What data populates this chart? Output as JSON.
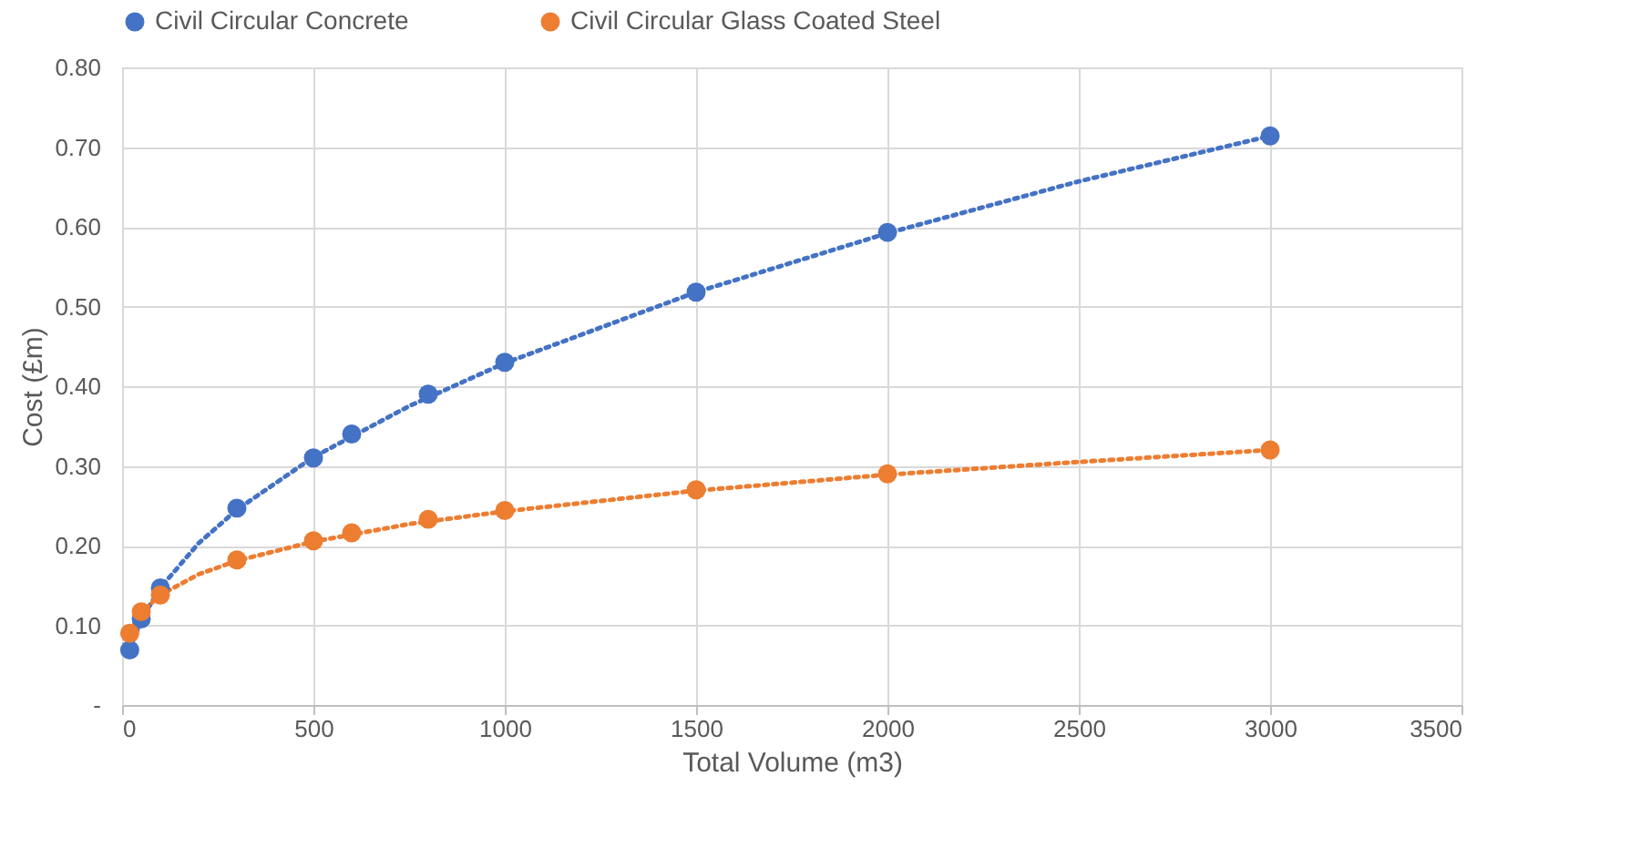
{
  "chart_data": {
    "type": "scatter",
    "xlabel": "Total Volume (m3)",
    "ylabel": "Cost (£m)",
    "xlim": [
      0,
      3500
    ],
    "xticks": [
      0,
      500,
      1000,
      1500,
      2000,
      2500,
      3000,
      3500
    ],
    "ylim": [
      0,
      0.8
    ],
    "yticks": [
      {
        "value": 0,
        "label": "-"
      },
      {
        "value": 0.1,
        "label": "0.10"
      },
      {
        "value": 0.2,
        "label": "0.20"
      },
      {
        "value": 0.3,
        "label": "0.30"
      },
      {
        "value": 0.4,
        "label": "0.40"
      },
      {
        "value": 0.5,
        "label": "0.50"
      },
      {
        "value": 0.6,
        "label": "0.60"
      },
      {
        "value": 0.7,
        "label": "0.70"
      },
      {
        "value": 0.8,
        "label": "0.80"
      }
    ],
    "grid": true,
    "legend": "top",
    "series": [
      {
        "type": "line",
        "color": "#4472c4",
        "line_style": "dotted",
        "marker": "none",
        "x": [
          20,
          50,
          100,
          200,
          300,
          500,
          750,
          1000,
          1500,
          2000,
          2500,
          3000
        ],
        "values": [
          0.07,
          0.107,
          0.147,
          0.203,
          0.245,
          0.311,
          0.375,
          0.429,
          0.518,
          0.592,
          0.657,
          0.714
        ]
      },
      {
        "type": "line",
        "color": "#ed7d31",
        "line_style": "dotted",
        "marker": "none",
        "x": [
          20,
          50,
          100,
          200,
          300,
          500,
          750,
          1000,
          1500,
          2000,
          2500,
          3000
        ],
        "values": [
          0.093,
          0.116,
          0.138,
          0.164,
          0.181,
          0.205,
          0.227,
          0.243,
          0.269,
          0.289,
          0.305,
          0.32
        ]
      },
      {
        "name": "Civil Circular Concrete",
        "color": "#4472c4",
        "marker": "circle",
        "x": [
          20,
          50,
          100,
          300,
          500,
          600,
          800,
          1000,
          1500,
          2000,
          3000
        ],
        "values": [
          0.069,
          0.108,
          0.147,
          0.247,
          0.31,
          0.34,
          0.39,
          0.43,
          0.518,
          0.593,
          0.714
        ]
      },
      {
        "name": "Civil Circular Glass Coated Steel",
        "color": "#ed7d31",
        "marker": "circle",
        "x": [
          20,
          50,
          100,
          300,
          500,
          600,
          800,
          1000,
          1500,
          2000,
          3000
        ],
        "values": [
          0.09,
          0.117,
          0.138,
          0.182,
          0.206,
          0.216,
          0.233,
          0.244,
          0.27,
          0.29,
          0.32
        ]
      }
    ]
  }
}
